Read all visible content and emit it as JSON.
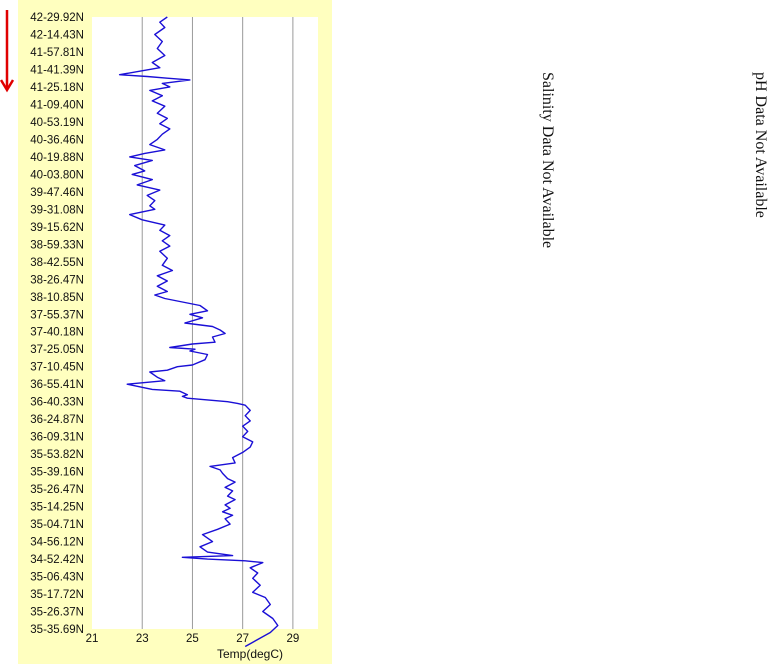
{
  "colors": {
    "panel_bg": "#ffffbf",
    "plot_bg": "#ffffff",
    "line": "#1a0fd6",
    "grid": "#9a9a9a",
    "arrow": "#e00000"
  },
  "direction_indicator": "red-down-arrow-icon",
  "salinity_note": "Salinity Data Not Available",
  "ph_note": "pH Data Not Available",
  "chart_data": {
    "type": "line",
    "orientation": "vertical-track",
    "title": "",
    "xlabel": "Temp(degC)",
    "ylabel": "",
    "xlim": [
      21,
      30
    ],
    "xticks": [
      21,
      23,
      25,
      27,
      29
    ],
    "grid": "vertical",
    "ytick_labels": [
      "42-29.92N",
      "42-14.43N",
      "41-57.81N",
      "41-41.39N",
      "41-25.18N",
      "41-09.40N",
      "40-53.19N",
      "40-36.46N",
      "40-19.88N",
      "40-03.80N",
      "39-47.46N",
      "39-31.08N",
      "39-15.62N",
      "38-59.33N",
      "38-42.55N",
      "38-26.47N",
      "38-10.85N",
      "37-55.37N",
      "37-40.18N",
      "37-25.05N",
      "37-10.45N",
      "36-55.41N",
      "36-40.33N",
      "36-24.87N",
      "36-09.31N",
      "35-53.82N",
      "35-39.16N",
      "35-26.47N",
      "35-14.25N",
      "35-04.71N",
      "34-56.12N",
      "34-52.42N",
      "35-06.43N",
      "35-17.72N",
      "35-26.37N",
      "35-35.69N"
    ],
    "series": [
      {
        "values": [
          [
            24.0,
            0
          ],
          [
            23.7,
            0.3
          ],
          [
            23.9,
            0.6
          ],
          [
            23.5,
            1.0
          ],
          [
            23.8,
            1.4
          ],
          [
            23.6,
            1.8
          ],
          [
            23.9,
            2.2
          ],
          [
            23.4,
            2.6
          ],
          [
            23.7,
            2.9
          ],
          [
            22.1,
            3.3
          ],
          [
            23.2,
            3.4
          ],
          [
            24.0,
            3.5
          ],
          [
            24.9,
            3.6
          ],
          [
            23.8,
            3.8
          ],
          [
            24.1,
            4.0
          ],
          [
            23.3,
            4.2
          ],
          [
            23.8,
            4.5
          ],
          [
            23.4,
            4.8
          ],
          [
            23.9,
            5.1
          ],
          [
            23.6,
            5.5
          ],
          [
            24.0,
            5.8
          ],
          [
            23.7,
            6.1
          ],
          [
            24.1,
            6.4
          ],
          [
            23.8,
            6.7
          ],
          [
            23.6,
            7.0
          ],
          [
            23.3,
            7.3
          ],
          [
            23.9,
            7.6
          ],
          [
            23.1,
            7.8
          ],
          [
            22.5,
            8.0
          ],
          [
            23.4,
            8.2
          ],
          [
            22.7,
            8.5
          ],
          [
            23.1,
            8.8
          ],
          [
            22.6,
            9.0
          ],
          [
            23.4,
            9.3
          ],
          [
            22.8,
            9.6
          ],
          [
            23.7,
            9.9
          ],
          [
            23.2,
            10.2
          ],
          [
            23.5,
            10.5
          ],
          [
            23.3,
            10.8
          ],
          [
            23.5,
            11.0
          ],
          [
            22.5,
            11.3
          ],
          [
            23.0,
            11.6
          ],
          [
            23.9,
            11.9
          ],
          [
            23.7,
            12.2
          ],
          [
            24.1,
            12.5
          ],
          [
            23.8,
            12.8
          ],
          [
            24.1,
            13.1
          ],
          [
            23.7,
            13.4
          ],
          [
            24.0,
            13.8
          ],
          [
            23.8,
            14.2
          ],
          [
            24.2,
            14.5
          ],
          [
            23.6,
            14.8
          ],
          [
            24.0,
            15.1
          ],
          [
            23.6,
            15.4
          ],
          [
            24.0,
            15.7
          ],
          [
            23.5,
            15.9
          ],
          [
            23.9,
            16.1
          ],
          [
            24.6,
            16.3
          ],
          [
            25.3,
            16.5
          ],
          [
            25.6,
            16.8
          ],
          [
            24.9,
            17.0
          ],
          [
            25.4,
            17.2
          ],
          [
            24.7,
            17.5
          ],
          [
            25.8,
            17.7
          ],
          [
            26.1,
            17.9
          ],
          [
            26.3,
            18.1
          ],
          [
            25.8,
            18.3
          ],
          [
            25.9,
            18.6
          ],
          [
            25.0,
            18.7
          ],
          [
            24.1,
            18.9
          ],
          [
            25.1,
            19.0
          ],
          [
            24.9,
            19.1
          ],
          [
            25.6,
            19.3
          ],
          [
            25.5,
            19.6
          ],
          [
            25.0,
            19.9
          ],
          [
            24.4,
            20.0
          ],
          [
            24.0,
            20.2
          ],
          [
            23.3,
            20.3
          ],
          [
            23.6,
            20.6
          ],
          [
            23.9,
            20.8
          ],
          [
            22.4,
            21.0
          ],
          [
            23.4,
            21.3
          ],
          [
            24.5,
            21.4
          ],
          [
            24.8,
            21.6
          ],
          [
            24.6,
            21.7
          ],
          [
            24.8,
            21.8
          ],
          [
            25.6,
            21.9
          ],
          [
            26.4,
            22.0
          ],
          [
            26.8,
            22.1
          ],
          [
            27.1,
            22.2
          ],
          [
            27.3,
            22.5
          ],
          [
            27.1,
            22.8
          ],
          [
            27.3,
            23.1
          ],
          [
            27.0,
            23.4
          ],
          [
            27.2,
            23.7
          ],
          [
            27.0,
            24.0
          ],
          [
            27.4,
            24.3
          ],
          [
            27.3,
            24.6
          ],
          [
            27.0,
            24.9
          ],
          [
            26.6,
            25.2
          ],
          [
            26.7,
            25.5
          ],
          [
            25.7,
            25.7
          ],
          [
            26.1,
            25.9
          ],
          [
            26.2,
            26.1
          ],
          [
            26.4,
            26.4
          ],
          [
            26.7,
            26.6
          ],
          [
            26.3,
            26.9
          ],
          [
            26.6,
            27.1
          ],
          [
            26.4,
            27.4
          ],
          [
            26.7,
            27.6
          ],
          [
            26.3,
            27.9
          ],
          [
            26.5,
            28.1
          ],
          [
            26.2,
            28.3
          ],
          [
            26.6,
            28.5
          ],
          [
            26.3,
            28.7
          ],
          [
            26.5,
            29.0
          ],
          [
            26.0,
            29.3
          ],
          [
            25.4,
            29.6
          ],
          [
            25.8,
            30.0
          ],
          [
            25.3,
            30.3
          ],
          [
            25.6,
            30.6
          ],
          [
            26.6,
            30.8
          ],
          [
            24.6,
            30.9
          ],
          [
            25.6,
            31.0
          ],
          [
            27.1,
            31.1
          ],
          [
            27.8,
            31.2
          ],
          [
            27.3,
            31.5
          ],
          [
            27.6,
            31.8
          ],
          [
            27.4,
            32.1
          ],
          [
            27.7,
            32.5
          ],
          [
            27.4,
            32.9
          ],
          [
            27.9,
            33.2
          ],
          [
            28.1,
            33.6
          ],
          [
            27.8,
            34.0
          ],
          [
            28.2,
            34.4
          ],
          [
            28.4,
            34.8
          ],
          [
            28.1,
            35.2
          ],
          [
            27.6,
            35.6
          ],
          [
            27.1,
            36.0
          ]
        ]
      }
    ]
  }
}
